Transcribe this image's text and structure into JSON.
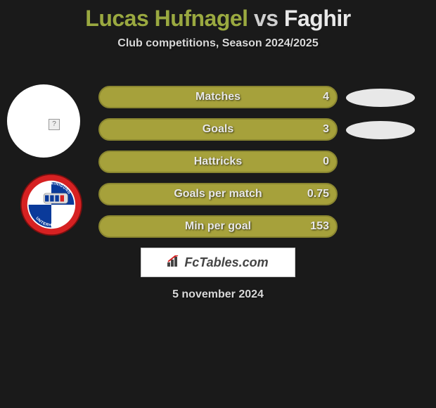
{
  "title": {
    "player1": "Lucas Hufnagel",
    "vs": "vs",
    "player2": "Faghir"
  },
  "subtitle": "Club competitions, Season 2024/2025",
  "stats": {
    "bar_bg": "#a6a13b",
    "border": "#8a8630",
    "rows": [
      {
        "label": "Matches",
        "value": "4"
      },
      {
        "label": "Goals",
        "value": "3"
      },
      {
        "label": "Hattricks",
        "value": "0"
      },
      {
        "label": "Goals per match",
        "value": "0.75"
      },
      {
        "label": "Min per goal",
        "value": "153"
      }
    ]
  },
  "right_ovals_count": 2,
  "branding": {
    "text": "FcTables.com"
  },
  "date": "5 november 2024",
  "club_logo": {
    "top_text": "SPIELVEREINIGUNG",
    "bottom_text": "UNTERHACHING",
    "outer": "#d62122",
    "inner_blue": "#0a3a9a",
    "train": "#dcdcdc"
  }
}
